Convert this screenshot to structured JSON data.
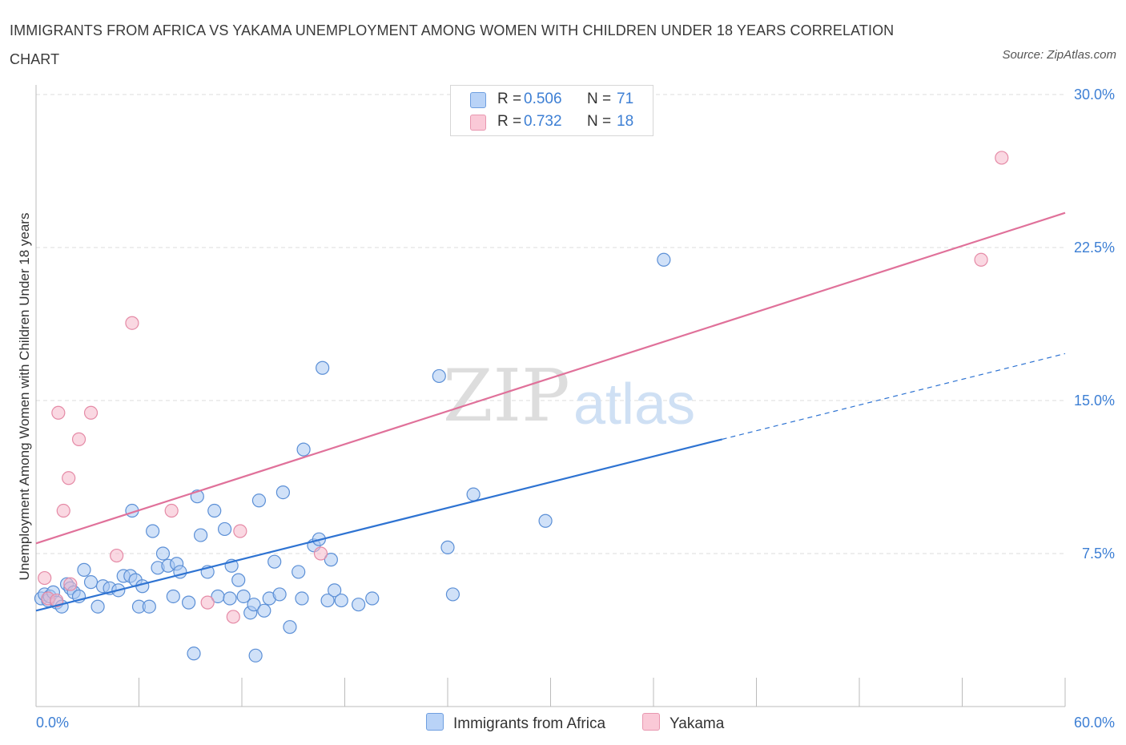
{
  "title": "IMMIGRANTS FROM AFRICA VS YAKAMA UNEMPLOYMENT AMONG WOMEN WITH CHILDREN UNDER 18 YEARS CORRELATION CHART",
  "source": "Source: ZipAtlas.com",
  "watermark": {
    "zip": "ZIP",
    "atlas": "atlas"
  },
  "colors": {
    "blue_fill": "#a9c8f3",
    "blue_stroke": "#5b8fd6",
    "blue_line": "#2e73d2",
    "pink_fill": "#f6b8cb",
    "pink_stroke": "#e58aa6",
    "pink_line": "#e0719a",
    "tick_label": "#3d7fd4",
    "grid": "#dddddd"
  },
  "legend": {
    "rows": [
      {
        "name": "Immigrants from Africa",
        "r_label": "R =",
        "r_value": "0.506",
        "n_label": "N =",
        "n_value": "71"
      },
      {
        "name": "Yakama",
        "r_label": "R =",
        "r_value": "0.732",
        "n_label": "N =",
        "n_value": "18"
      }
    ]
  },
  "chart_data": {
    "type": "scatter",
    "title": "IMMIGRANTS FROM AFRICA VS YAKAMA UNEMPLOYMENT AMONG WOMEN WITH CHILDREN UNDER 18 YEARS CORRELATION CHART",
    "xlabel": "",
    "ylabel": "Unemployment Among Women with Children Under 18 years",
    "xlim": [
      0,
      60
    ],
    "ylim": [
      0,
      30
    ],
    "x_tick_labels": [
      "0.0%",
      "60.0%"
    ],
    "y_ticks": [
      7.5,
      15,
      22.5,
      30
    ],
    "y_tick_labels": [
      "7.5%",
      "15.0%",
      "22.5%",
      "30.0%"
    ],
    "grid": true,
    "legend_position": "top-center",
    "series": [
      {
        "name": "Immigrants from Africa",
        "R": 0.506,
        "N": 71,
        "trend": {
          "x0": 0,
          "y0": 4.7,
          "x1_solid": 40,
          "x1": 60,
          "y1": 17.3
        },
        "points": [
          [
            0.3,
            5.3
          ],
          [
            0.5,
            5.5
          ],
          [
            0.7,
            5.2
          ],
          [
            0.8,
            5.4
          ],
          [
            1.0,
            5.6
          ],
          [
            1.2,
            5.1
          ],
          [
            1.5,
            4.9
          ],
          [
            1.8,
            6.0
          ],
          [
            2.0,
            5.8
          ],
          [
            2.2,
            5.6
          ],
          [
            2.5,
            5.4
          ],
          [
            2.8,
            6.7
          ],
          [
            3.2,
            6.1
          ],
          [
            3.6,
            4.9
          ],
          [
            3.9,
            5.9
          ],
          [
            4.3,
            5.8
          ],
          [
            4.8,
            5.7
          ],
          [
            5.1,
            6.4
          ],
          [
            5.5,
            6.4
          ],
          [
            5.8,
            6.2
          ],
          [
            5.6,
            9.6
          ],
          [
            6.0,
            4.9
          ],
          [
            6.2,
            5.9
          ],
          [
            6.6,
            4.9
          ],
          [
            6.8,
            8.6
          ],
          [
            7.1,
            6.8
          ],
          [
            7.4,
            7.5
          ],
          [
            7.7,
            6.9
          ],
          [
            8.0,
            5.4
          ],
          [
            8.2,
            7.0
          ],
          [
            8.4,
            6.6
          ],
          [
            8.9,
            5.1
          ],
          [
            9.2,
            2.6
          ],
          [
            9.4,
            10.3
          ],
          [
            9.6,
            8.4
          ],
          [
            10.0,
            6.6
          ],
          [
            10.4,
            9.6
          ],
          [
            10.6,
            5.4
          ],
          [
            11.0,
            8.7
          ],
          [
            11.3,
            5.3
          ],
          [
            11.4,
            6.9
          ],
          [
            11.8,
            6.2
          ],
          [
            12.1,
            5.4
          ],
          [
            12.5,
            4.6
          ],
          [
            12.7,
            5.0
          ],
          [
            12.8,
            2.5
          ],
          [
            13.0,
            10.1
          ],
          [
            13.3,
            4.7
          ],
          [
            13.6,
            5.3
          ],
          [
            13.9,
            7.1
          ],
          [
            14.2,
            5.5
          ],
          [
            14.4,
            10.5
          ],
          [
            14.8,
            3.9
          ],
          [
            15.3,
            6.6
          ],
          [
            15.5,
            5.3
          ],
          [
            15.6,
            12.6
          ],
          [
            16.2,
            7.9
          ],
          [
            16.5,
            8.2
          ],
          [
            16.7,
            16.6
          ],
          [
            17.0,
            5.2
          ],
          [
            17.2,
            7.2
          ],
          [
            17.4,
            5.7
          ],
          [
            17.8,
            5.2
          ],
          [
            18.8,
            5.0
          ],
          [
            19.6,
            5.3
          ],
          [
            23.5,
            16.2
          ],
          [
            24.0,
            7.8
          ],
          [
            24.3,
            5.5
          ],
          [
            25.5,
            10.4
          ],
          [
            29.7,
            9.1
          ],
          [
            36.6,
            21.9
          ]
        ]
      },
      {
        "name": "Yakama",
        "R": 0.732,
        "N": 18,
        "trend": {
          "x0": 0,
          "y0": 8.0,
          "x1": 60,
          "y1": 24.2
        },
        "points": [
          [
            0.5,
            6.3
          ],
          [
            0.7,
            5.3
          ],
          [
            1.2,
            5.2
          ],
          [
            1.3,
            14.4
          ],
          [
            2.0,
            6.0
          ],
          [
            1.9,
            11.2
          ],
          [
            2.5,
            13.1
          ],
          [
            1.6,
            9.6
          ],
          [
            3.2,
            14.4
          ],
          [
            4.7,
            7.4
          ],
          [
            5.6,
            18.8
          ],
          [
            7.9,
            9.6
          ],
          [
            10.0,
            5.1
          ],
          [
            11.5,
            4.4
          ],
          [
            11.9,
            8.6
          ],
          [
            16.6,
            7.5
          ],
          [
            55.1,
            21.9
          ],
          [
            56.3,
            26.9
          ]
        ]
      }
    ]
  }
}
